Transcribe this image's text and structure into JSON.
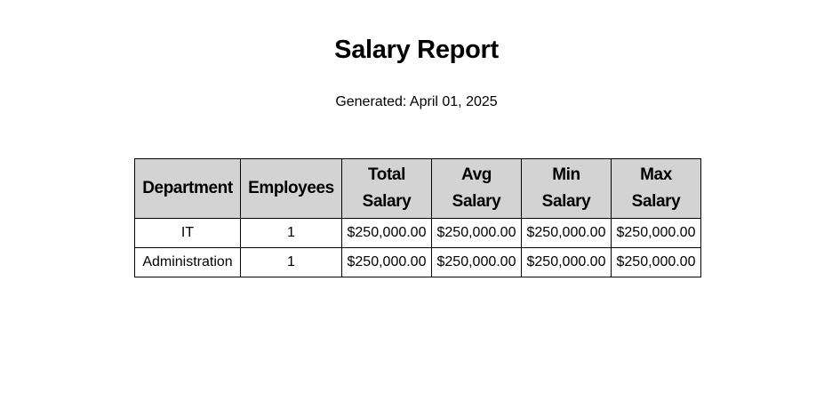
{
  "report": {
    "title": "Salary Report",
    "generated": "Generated: April 01, 2025"
  },
  "table": {
    "headers": [
      [
        "Department"
      ],
      [
        "Employees"
      ],
      [
        "Total",
        "Salary"
      ],
      [
        "Avg",
        "Salary"
      ],
      [
        "Min",
        "Salary"
      ],
      [
        "Max",
        "Salary"
      ]
    ],
    "rows": [
      [
        "IT",
        "1",
        "$250,000.00",
        "$250,000.00",
        "$250,000.00",
        "$250,000.00"
      ],
      [
        "Administration",
        "1",
        "$250,000.00",
        "$250,000.00",
        "$250,000.00",
        "$250,000.00"
      ]
    ]
  }
}
